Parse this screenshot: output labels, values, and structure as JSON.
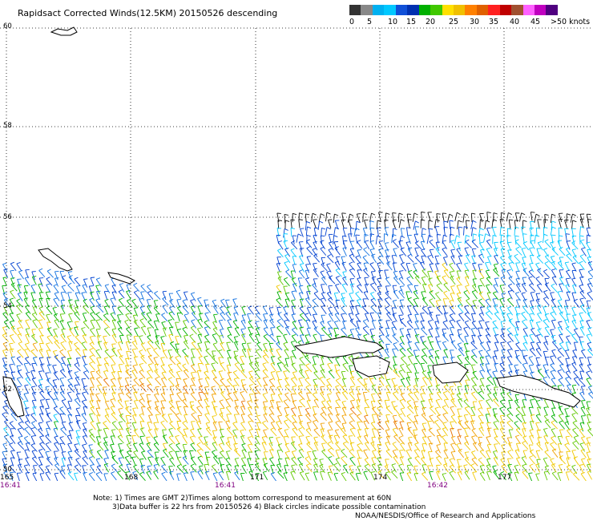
{
  "title": "Rapidsact Corrected Winds(12.5KM) 20150526 descending",
  "colorbar": {
    "colors": [
      "#333333",
      "#888888",
      "#00b0f0",
      "#00c8ff",
      "#1050d8",
      "#0030b0",
      "#00b000",
      "#40c800",
      "#ffe000",
      "#f0c000",
      "#ff8000",
      "#e06000",
      "#ff2020",
      "#c00000",
      "#a05030",
      "#ff60ff",
      "#c000c0",
      "#500080"
    ],
    "labels": [
      "0",
      "5",
      "10",
      "15",
      "20",
      "25",
      "30",
      "35",
      "40",
      "45",
      ">50 knots"
    ]
  },
  "map": {
    "lat_labels": [
      "60",
      "58",
      "56",
      "54",
      "52",
      "50"
    ],
    "lon_labels": [
      "165",
      "168",
      "171",
      "174",
      "177"
    ],
    "time_labels": [
      "16:41",
      "16:41",
      "16:42"
    ],
    "region": "Bering Sea / Aleutian Islands",
    "gridlines": "dotted"
  },
  "notes": [
    "Note: 1) Times are GMT 2)Times along bottom correspond to measurement at 60N",
    "3)Data buffer is 22 hrs from 20150526 4) Black circles indicate possible contamination"
  ],
  "credit": "NOAA/NESDIS/Office of Research and Applications"
}
